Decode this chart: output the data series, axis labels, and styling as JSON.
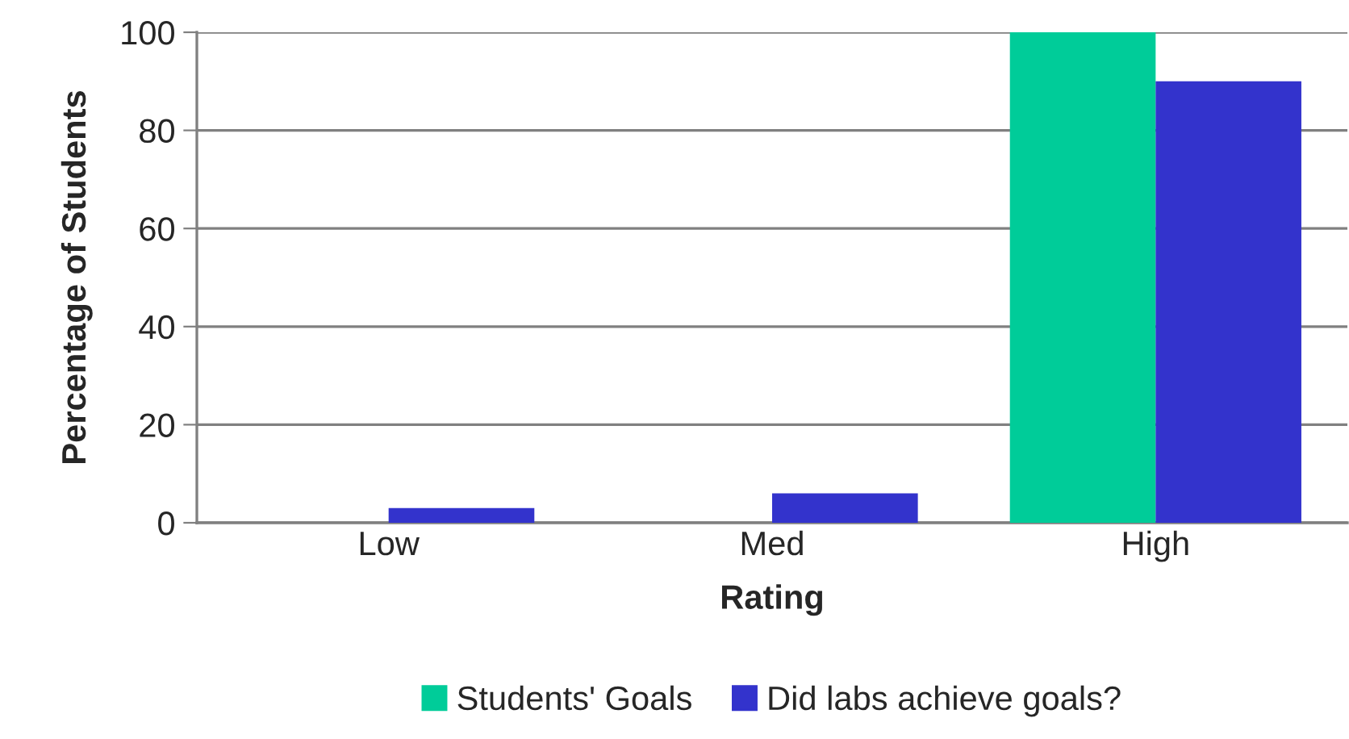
{
  "chart_data": {
    "type": "bar",
    "xlabel": "Rating",
    "ylabel": "Percentage of Students",
    "categories": [
      "Low",
      "Med",
      "High"
    ],
    "series": [
      {
        "name": "Students' Goals",
        "color": "#00cc99",
        "values": [
          null,
          null,
          100
        ]
      },
      {
        "name": "Did labs achieve goals?",
        "color": "#3333cc",
        "values": [
          3,
          6,
          90
        ]
      }
    ],
    "ylim": [
      0,
      100
    ],
    "yticks": [
      0,
      20,
      40,
      60,
      80,
      100
    ],
    "grid": "y",
    "legend": "bottom"
  }
}
